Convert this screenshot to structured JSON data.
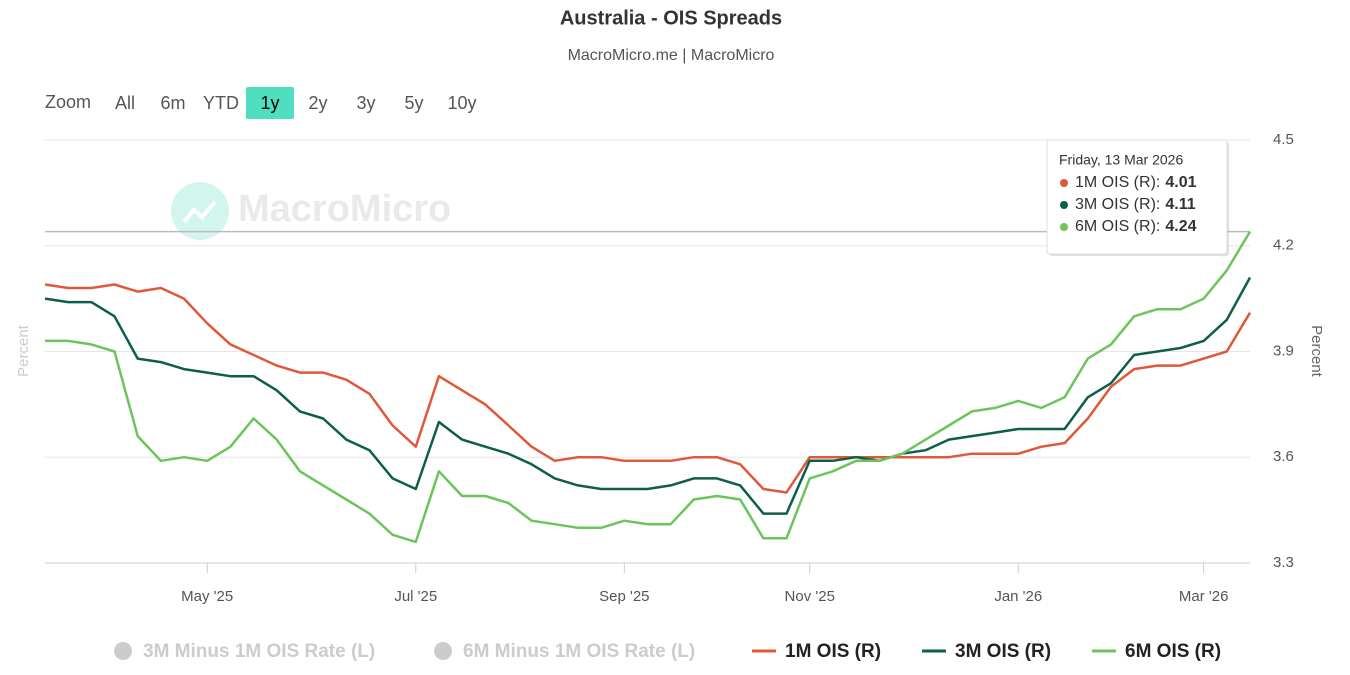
{
  "chart_data": {
    "type": "line",
    "title": "Australia - OIS Spreads",
    "subtitle": "MacroMicro.me | MacroMicro",
    "watermark": "MacroMicro",
    "range_selector": {
      "label": "Zoom",
      "buttons": [
        "All",
        "6m",
        "YTD",
        "1y",
        "2y",
        "3y",
        "5y",
        "10y"
      ],
      "selected": 3
    },
    "y_label_left": "Percent",
    "y_label_right": "Percent",
    "categories": [
      null,
      null,
      null,
      null,
      null,
      null,
      null,
      "May '25",
      null,
      null,
      null,
      null,
      null,
      null,
      null,
      null,
      "Jul '25",
      null,
      null,
      null,
      null,
      null,
      null,
      null,
      null,
      "Sep '25",
      null,
      null,
      null,
      null,
      null,
      null,
      null,
      "Nov '25",
      null,
      null,
      null,
      null,
      null,
      null,
      null,
      null,
      "Jan '26",
      null,
      null,
      null,
      null,
      null,
      null,
      null,
      "Mar '26",
      null,
      null
    ],
    "series": [
      {
        "name": "1M OIS (R)",
        "color": "#e0583a",
        "values": [
          4.09,
          4.08,
          4.08,
          4.09,
          4.07,
          4.08,
          4.05,
          3.98,
          3.92,
          3.89,
          3.86,
          3.84,
          3.84,
          3.82,
          3.78,
          3.69,
          3.63,
          3.83,
          3.79,
          3.75,
          3.69,
          3.63,
          3.59,
          3.6,
          3.6,
          3.59,
          3.59,
          3.59,
          3.6,
          3.6,
          3.58,
          3.51,
          3.5,
          3.6,
          3.6,
          3.6,
          3.6,
          3.6,
          3.6,
          3.6,
          3.61,
          3.61,
          3.61,
          3.63,
          3.64,
          3.71,
          3.8,
          3.85,
          3.86,
          3.86,
          3.88,
          3.9,
          4.01
        ]
      },
      {
        "name": "3M OIS (R)",
        "color": "#0d5e4a",
        "values": [
          4.05,
          4.04,
          4.04,
          4.0,
          3.88,
          3.87,
          3.85,
          3.84,
          3.83,
          3.83,
          3.79,
          3.73,
          3.71,
          3.65,
          3.62,
          3.54,
          3.51,
          3.7,
          3.65,
          3.63,
          3.61,
          3.58,
          3.54,
          3.52,
          3.51,
          3.51,
          3.51,
          3.52,
          3.54,
          3.54,
          3.52,
          3.44,
          3.44,
          3.59,
          3.59,
          3.6,
          3.59,
          3.61,
          3.62,
          3.65,
          3.66,
          3.67,
          3.68,
          3.68,
          3.68,
          3.77,
          3.81,
          3.89,
          3.9,
          3.91,
          3.93,
          3.99,
          4.11
        ]
      },
      {
        "name": "6M OIS (R)",
        "color": "#6cc55a",
        "values": [
          3.93,
          3.93,
          3.92,
          3.9,
          3.66,
          3.59,
          3.6,
          3.59,
          3.63,
          3.71,
          3.65,
          3.56,
          3.52,
          3.48,
          3.44,
          3.38,
          3.36,
          3.56,
          3.49,
          3.49,
          3.47,
          3.42,
          3.41,
          3.4,
          3.4,
          3.42,
          3.41,
          3.41,
          3.48,
          3.49,
          3.48,
          3.37,
          3.37,
          3.54,
          3.56,
          3.59,
          3.59,
          3.61,
          3.65,
          3.69,
          3.73,
          3.74,
          3.76,
          3.74,
          3.77,
          3.88,
          3.92,
          4.0,
          4.02,
          4.02,
          4.05,
          4.13,
          4.24
        ]
      }
    ],
    "legend_disabled": [
      "3M Minus 1M OIS Rate (L)",
      "6M Minus 1M OIS Rate (L)"
    ],
    "ylim": [
      3.3,
      4.5
    ],
    "yticks": [
      3.3,
      3.6,
      3.9,
      4.2,
      4.5
    ],
    "grid": true,
    "tooltip": {
      "date": "Friday, 13 Mar 2026",
      "separator": ":"
    }
  }
}
